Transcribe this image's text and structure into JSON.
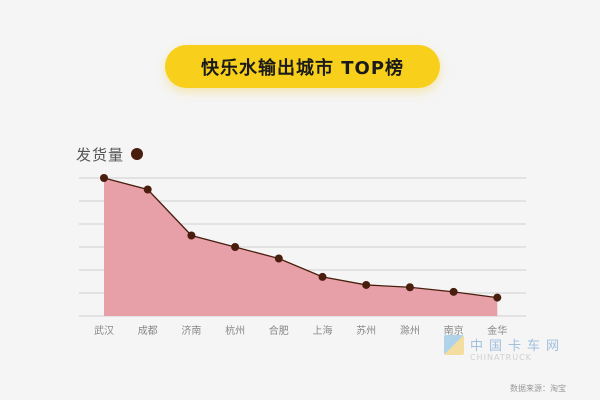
{
  "header": {
    "title": "快乐水输出城市 TOP榜"
  },
  "legend": {
    "label": "发货量"
  },
  "watermark": {
    "cn": "中国卡车网",
    "en": "CHINATRUCK"
  },
  "footer": {
    "source": "数据来源：淘宝"
  },
  "colors": {
    "title_bg": "#f8d01c",
    "area_fill": "#e8a0a8",
    "line": "#4a1e0e",
    "marker": "#4a1e0e",
    "grid": "#d0d0d0",
    "background": "#f5f5f5"
  },
  "chart_data": {
    "type": "area",
    "title": "快乐水输出城市 TOP榜",
    "xlabel": "",
    "ylabel": "发货量",
    "categories": [
      "武汉",
      "成都",
      "济南",
      "杭州",
      "合肥",
      "上海",
      "苏州",
      "滁州",
      "南京",
      "金华"
    ],
    "values": [
      6.0,
      5.5,
      3.5,
      3.0,
      2.5,
      1.7,
      1.35,
      1.25,
      1.05,
      0.8
    ],
    "value_scale_note": "relative shipment volume; each gridline = 1 unit, no numeric tick labels shown",
    "ylim": [
      0,
      6
    ],
    "grid": true,
    "legend_position": "top-left"
  }
}
